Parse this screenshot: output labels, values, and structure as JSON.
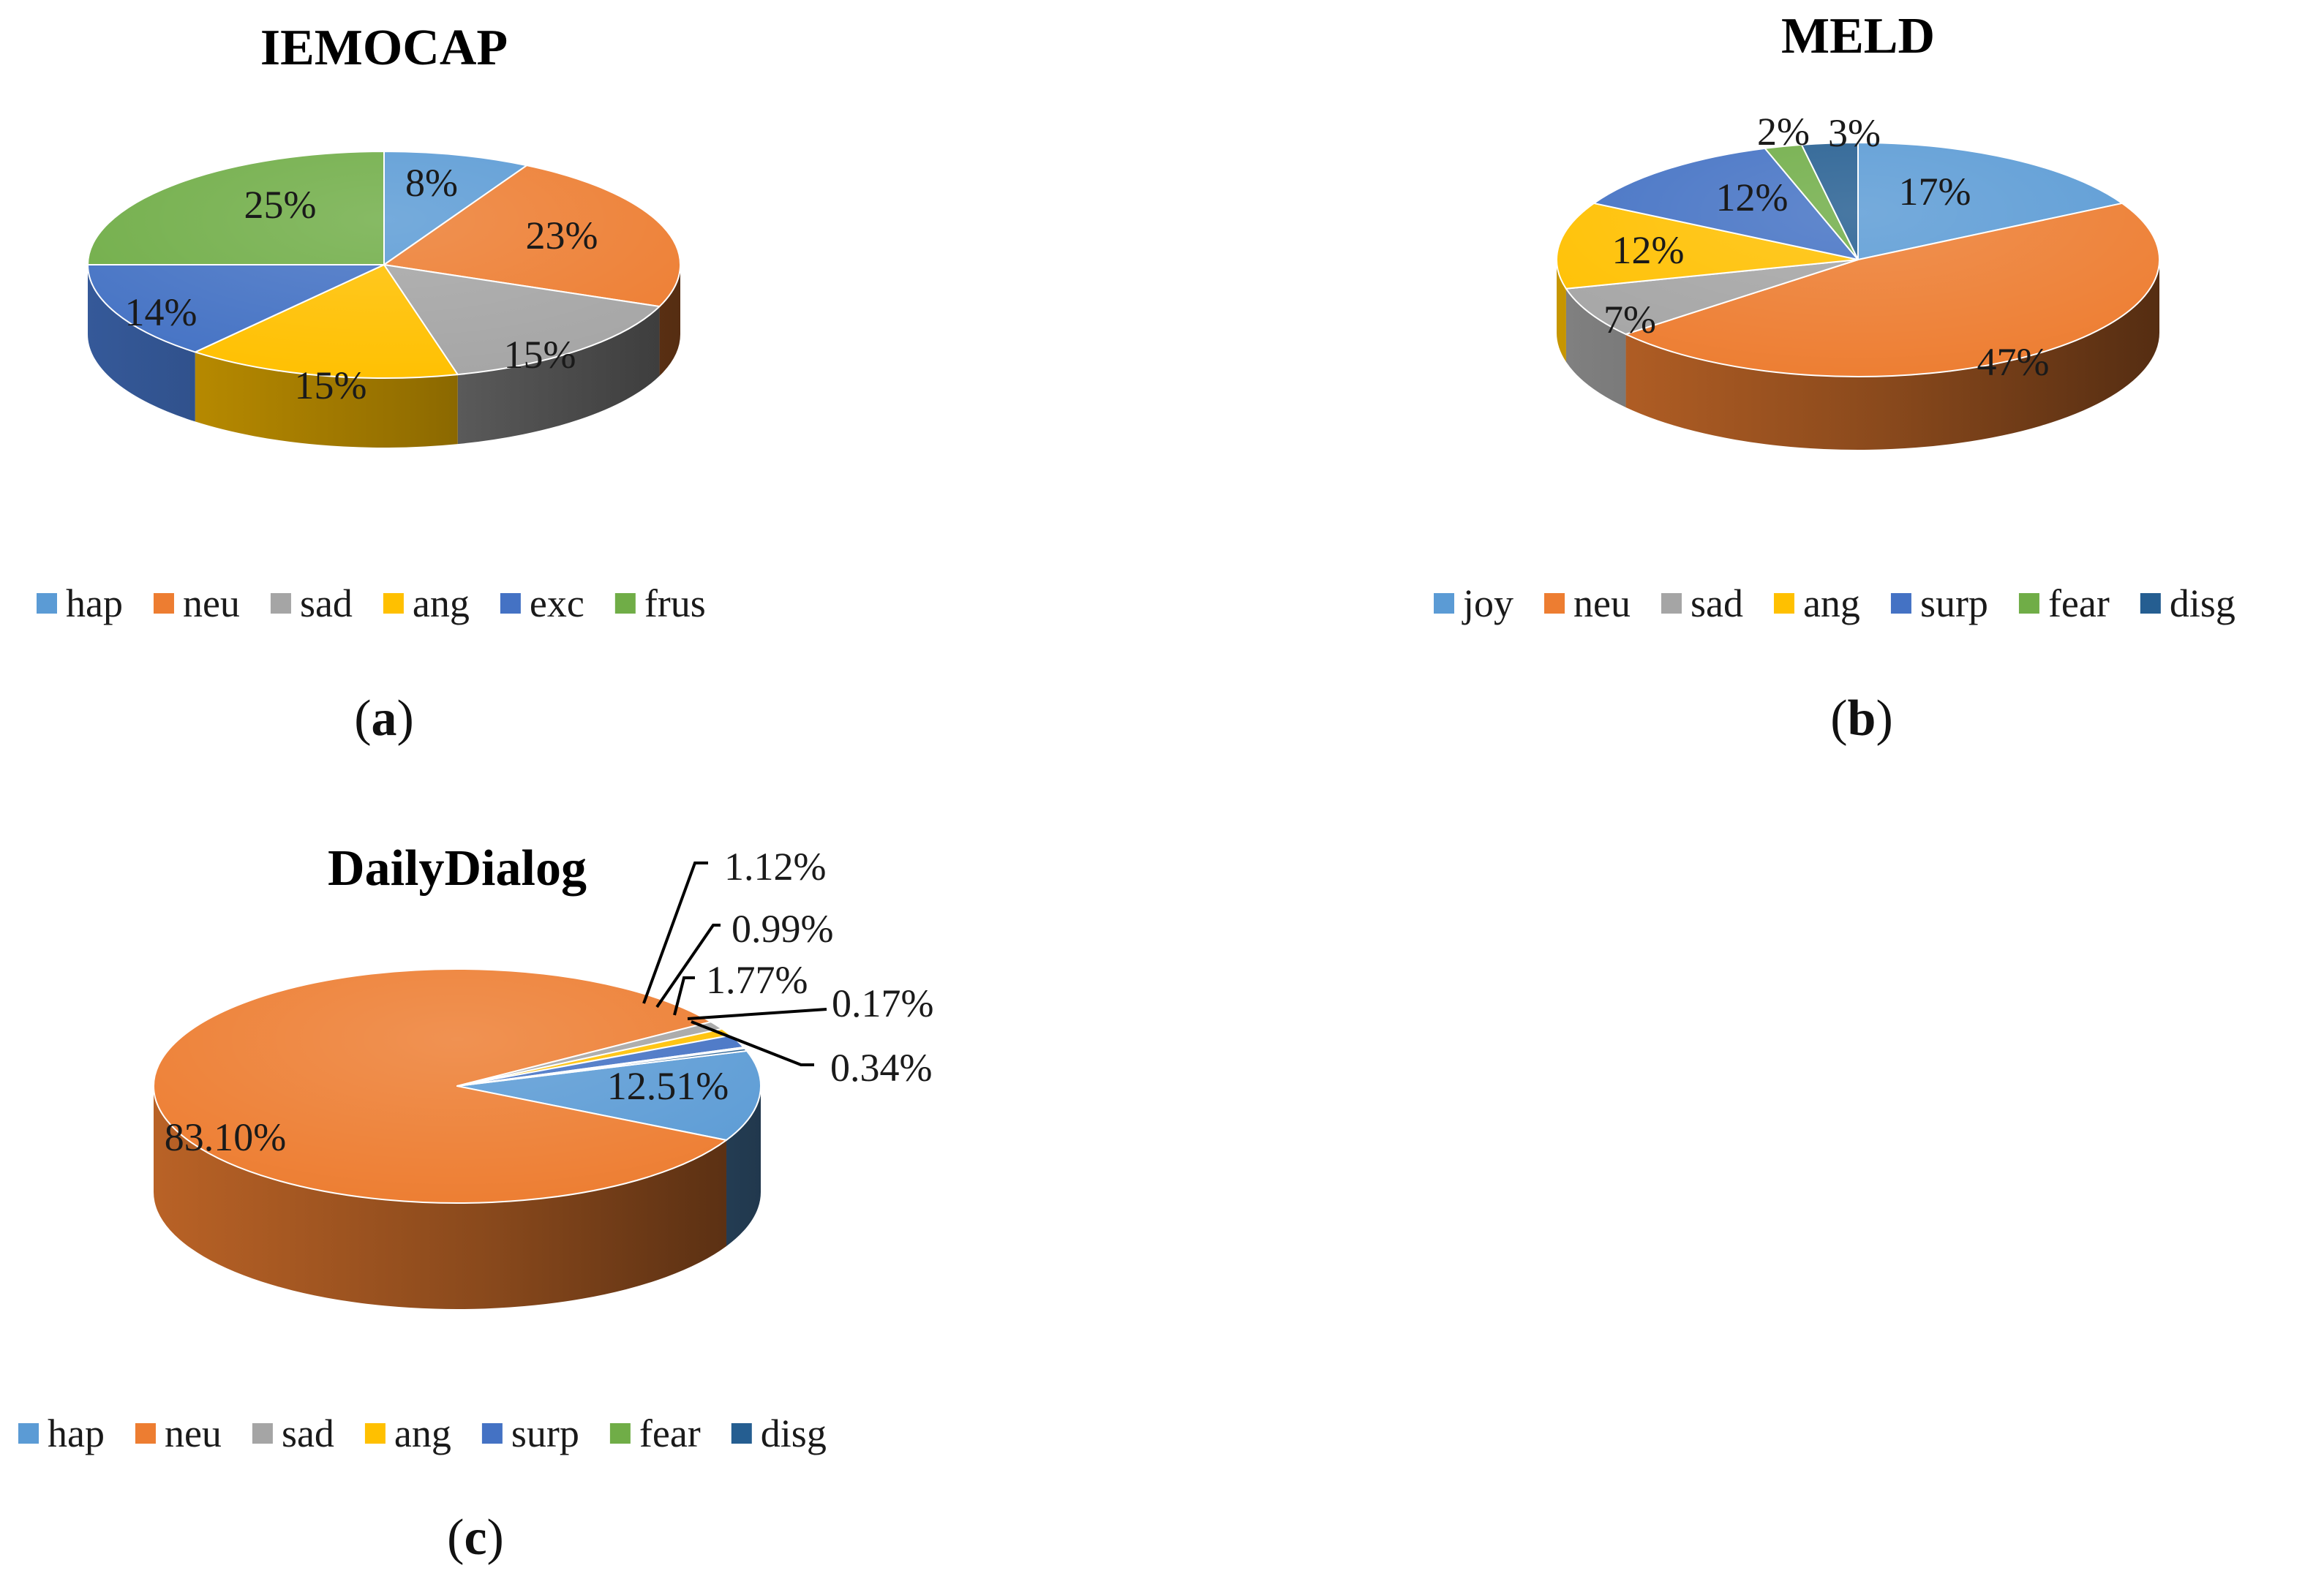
{
  "colors": {
    "blue_light": "#5B9BD5",
    "orange": "#ED7D31",
    "gray": "#A5A5A5",
    "yellow": "#FFC000",
    "blue": "#4472C4",
    "green": "#70AD47",
    "navy": "#255E91",
    "leader": "#000000"
  },
  "chart_data": [
    {
      "type": "pie",
      "style": "3d",
      "title": "IEMOCAP",
      "caption": "a",
      "categories": [
        "hap",
        "neu",
        "sad",
        "ang",
        "exc",
        "frus"
      ],
      "values": [
        8,
        23,
        15,
        15,
        14,
        25
      ],
      "labels": [
        "8%",
        "23%",
        "15%",
        "15%",
        "14%",
        "25%"
      ],
      "colors": [
        "#5B9BD5",
        "#ED7D31",
        "#A5A5A5",
        "#FFC000",
        "#4472C4",
        "#70AD47"
      ],
      "legend": "bottom"
    },
    {
      "type": "pie",
      "style": "3d",
      "title": "MELD",
      "caption": "b",
      "categories": [
        "joy",
        "neu",
        "sad",
        "ang",
        "surp",
        "fear",
        "disg"
      ],
      "values": [
        17,
        47,
        7,
        12,
        12,
        2,
        3
      ],
      "labels": [
        "17%",
        "47%",
        "7%",
        "12%",
        "12%",
        "2%",
        "3%"
      ],
      "colors": [
        "#5B9BD5",
        "#ED7D31",
        "#A5A5A5",
        "#FFC000",
        "#4472C4",
        "#70AD47",
        "#255E91"
      ],
      "legend": "bottom"
    },
    {
      "type": "pie",
      "style": "3d",
      "title": "DailyDialog",
      "caption": "c",
      "categories": [
        "hap",
        "neu",
        "sad",
        "ang",
        "surp",
        "fear",
        "disg"
      ],
      "values": [
        12.51,
        83.1,
        1.12,
        0.99,
        1.77,
        0.17,
        0.34
      ],
      "labels": [
        "12.51%",
        "83.10%",
        "1.12%",
        "0.99%",
        "1.77%",
        "0.17%",
        "0.34%"
      ],
      "colors": [
        "#5B9BD5",
        "#ED7D31",
        "#A5A5A5",
        "#FFC000",
        "#4472C4",
        "#70AD47",
        "#255E91"
      ],
      "legend": "bottom"
    }
  ]
}
